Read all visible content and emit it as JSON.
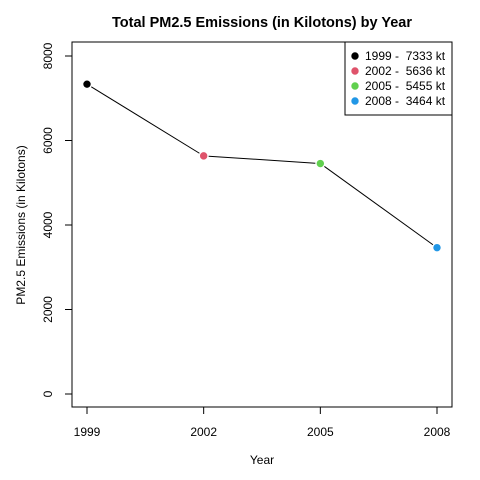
{
  "chart_data": {
    "type": "line",
    "title": "Total PM2.5 Emissions (in Kilotons) by Year",
    "xlabel": "Year",
    "ylabel": "PM2.5 Emissions (in Kilotons)",
    "x": [
      1999,
      2002,
      2005,
      2008
    ],
    "y": [
      7333,
      5636,
      5455,
      3464
    ],
    "x_tick_labels": [
      "1999",
      "2002",
      "2005",
      "2008"
    ],
    "y_ticks": [
      0,
      2000,
      4000,
      6000,
      8000
    ],
    "y_tick_labels": [
      "0",
      "2000",
      "4000",
      "6000",
      "8000"
    ],
    "xlim": [
      1999,
      2008
    ],
    "ylim": [
      0,
      8000
    ],
    "point_colors": [
      "#000000",
      "#DF536B",
      "#61D04F",
      "#2297E6"
    ],
    "line_color": "#000000",
    "grid": false,
    "legend": {
      "position": "top-right",
      "entries": [
        {
          "label": "1999 -  7333 kt",
          "color": "#000000"
        },
        {
          "label": "2002 -  5636 kt",
          "color": "#DF536B"
        },
        {
          "label": "2005 -  5455 kt",
          "color": "#61D04F"
        },
        {
          "label": "2008 -  3464 kt",
          "color": "#2297E6"
        }
      ]
    }
  }
}
